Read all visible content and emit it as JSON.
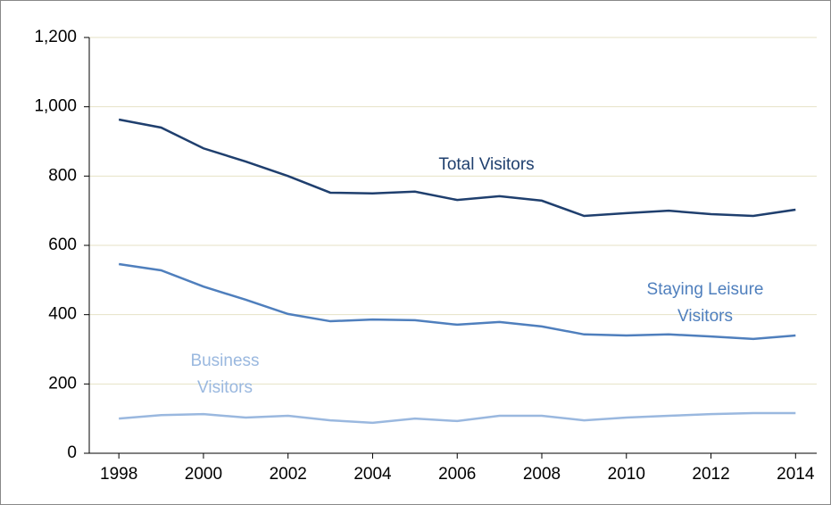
{
  "chart_data": {
    "type": "line",
    "x": [
      1998,
      1999,
      2000,
      2001,
      2002,
      2003,
      2004,
      2005,
      2006,
      2007,
      2008,
      2009,
      2010,
      2011,
      2012,
      2013,
      2014
    ],
    "series": [
      {
        "name": "Total Visitors",
        "color": "#1f3f6e",
        "values": [
          963,
          940,
          880,
          842,
          800,
          752,
          750,
          755,
          731,
          742,
          729,
          685,
          693,
          700,
          690,
          685,
          703
        ]
      },
      {
        "name": "Staying Leisure Visitors",
        "color": "#4f7fbd",
        "values": [
          546,
          528,
          481,
          443,
          402,
          381,
          386,
          384,
          371,
          379,
          366,
          343,
          340,
          343,
          337,
          330,
          340
        ]
      },
      {
        "name": "Business Visitors",
        "color": "#9ab8df",
        "values": [
          100,
          110,
          113,
          103,
          108,
          95,
          88,
          100,
          93,
          108,
          108,
          95,
          103,
          108,
          113,
          116,
          116
        ]
      }
    ],
    "xlim": [
      1997.3,
      2014.5
    ],
    "xticks": [
      1998,
      2000,
      2002,
      2004,
      2006,
      2008,
      2010,
      2012,
      2014
    ],
    "ylim": [
      0,
      1200
    ],
    "yticks": [
      0,
      200,
      400,
      600,
      800,
      {
        "value": 1000,
        "label": "1,000"
      },
      {
        "value": 1200,
        "label": "1,200"
      }
    ],
    "grid": true
  }
}
